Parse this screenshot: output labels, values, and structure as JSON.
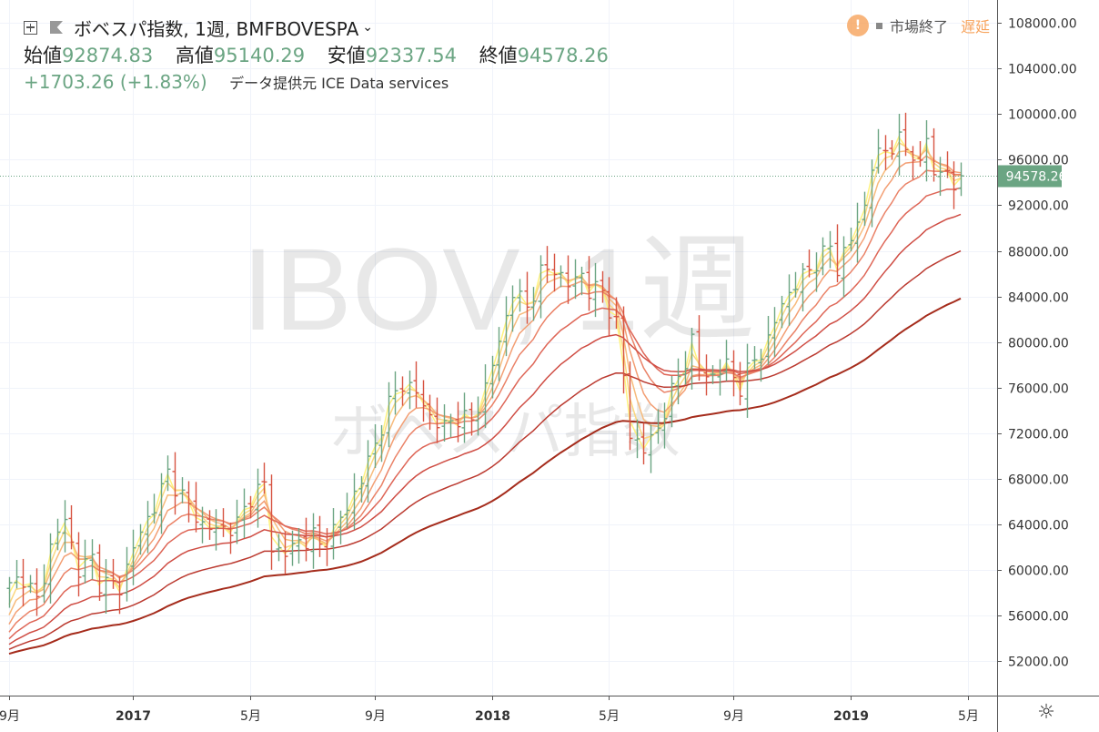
{
  "header": {
    "title": "ボベスパ指数, 1週, BMFBOVESPA",
    "ohlc": [
      {
        "label": "始値",
        "value": "92874.83"
      },
      {
        "label": "高値",
        "value": "95140.29"
      },
      {
        "label": "安値",
        "value": "92337.54"
      },
      {
        "label": "終値",
        "value": "94578.26"
      }
    ],
    "change": "+1703.26 (+1.83%)",
    "source": "データ提供元 ICE Data services"
  },
  "status": {
    "warning_icon": "!",
    "market": "市場終了",
    "delay": "遅延"
  },
  "watermark": {
    "main": "IBOV, 1週",
    "sub": "ボベスパ指数"
  },
  "colors": {
    "up": "#6ba583",
    "down": "#d75442",
    "price_label_bg": "#6ba583",
    "ribbon": [
      "#fff37e",
      "#fbd780",
      "#f7bb7c",
      "#f39f74",
      "#ea8267",
      "#de6657",
      "#cf4d44",
      "#bb3a30",
      "#a52c1c"
    ]
  },
  "chart_data": {
    "type": "ohlc",
    "symbol": "IBOV",
    "interval": "1週",
    "ylim": [
      49000,
      110000
    ],
    "y_ticks": [
      "108000.00",
      "104000.00",
      "100000.00",
      "96000.00",
      "92000.00",
      "88000.00",
      "84000.00",
      "80000.00",
      "76000.00",
      "72000.00",
      "68000.00",
      "64000.00",
      "60000.00",
      "56000.00",
      "52000.00"
    ],
    "x_labels": [
      {
        "label": "9月",
        "week": 0
      },
      {
        "label": "2017",
        "week": 18
      },
      {
        "label": "5月",
        "week": 35
      },
      {
        "label": "9月",
        "week": 53
      },
      {
        "label": "2018",
        "week": 70
      },
      {
        "label": "5月",
        "week": 87
      },
      {
        "label": "9月",
        "week": 105
      },
      {
        "label": "2019",
        "week": 122
      },
      {
        "label": "5月",
        "week": 139
      }
    ],
    "last_price": "94578.26",
    "last_value": 94578.26,
    "price_anchors": [
      [
        0,
        58500
      ],
      [
        2,
        59500
      ],
      [
        4,
        57200
      ],
      [
        6,
        62000
      ],
      [
        8,
        64500
      ],
      [
        10,
        60000
      ],
      [
        12,
        61000
      ],
      [
        13,
        59000
      ],
      [
        16,
        58500
      ],
      [
        18,
        62000
      ],
      [
        20,
        64500
      ],
      [
        22,
        67000
      ],
      [
        23,
        68500
      ],
      [
        26,
        65500
      ],
      [
        28,
        64000
      ],
      [
        30,
        63500
      ],
      [
        33,
        64000
      ],
      [
        35,
        66500
      ],
      [
        37,
        67500
      ],
      [
        38,
        62000
      ],
      [
        40,
        61500
      ],
      [
        42,
        62500
      ],
      [
        44,
        63000
      ],
      [
        45,
        62000
      ],
      [
        47,
        63500
      ],
      [
        49,
        65500
      ],
      [
        51,
        68000
      ],
      [
        53,
        71000
      ],
      [
        55,
        74500
      ],
      [
        57,
        76500
      ],
      [
        59,
        75500
      ],
      [
        61,
        73500
      ],
      [
        63,
        72500
      ],
      [
        65,
        73500
      ],
      [
        67,
        73000
      ],
      [
        69,
        76000
      ],
      [
        71,
        80000
      ],
      [
        73,
        84500
      ],
      [
        75,
        83000
      ],
      [
        77,
        86000
      ],
      [
        79,
        86500
      ],
      [
        81,
        85000
      ],
      [
        83,
        86000
      ],
      [
        84,
        84500
      ],
      [
        86,
        84500
      ],
      [
        88,
        81500
      ],
      [
        89,
        77000
      ],
      [
        90,
        72000
      ],
      [
        92,
        70500
      ],
      [
        94,
        72500
      ],
      [
        96,
        75500
      ],
      [
        98,
        78500
      ],
      [
        99,
        80000
      ],
      [
        100,
        77500
      ],
      [
        102,
        77000
      ],
      [
        104,
        78000
      ],
      [
        106,
        76000
      ],
      [
        108,
        78500
      ],
      [
        110,
        80000
      ],
      [
        112,
        83500
      ],
      [
        114,
        85000
      ],
      [
        116,
        86500
      ],
      [
        118,
        87500
      ],
      [
        119,
        88500
      ],
      [
        120,
        86500
      ],
      [
        122,
        89000
      ],
      [
        124,
        92000
      ],
      [
        125,
        95500
      ],
      [
        127,
        97000
      ],
      [
        129,
        97500
      ],
      [
        131,
        96500
      ],
      [
        132,
        95500
      ],
      [
        133,
        98000
      ],
      [
        134,
        94500
      ],
      [
        136,
        95500
      ],
      [
        137,
        92500
      ],
      [
        138,
        94578
      ]
    ],
    "ema_periods": [
      8,
      13,
      21,
      34,
      55,
      89,
      144,
      233,
      377
    ]
  }
}
